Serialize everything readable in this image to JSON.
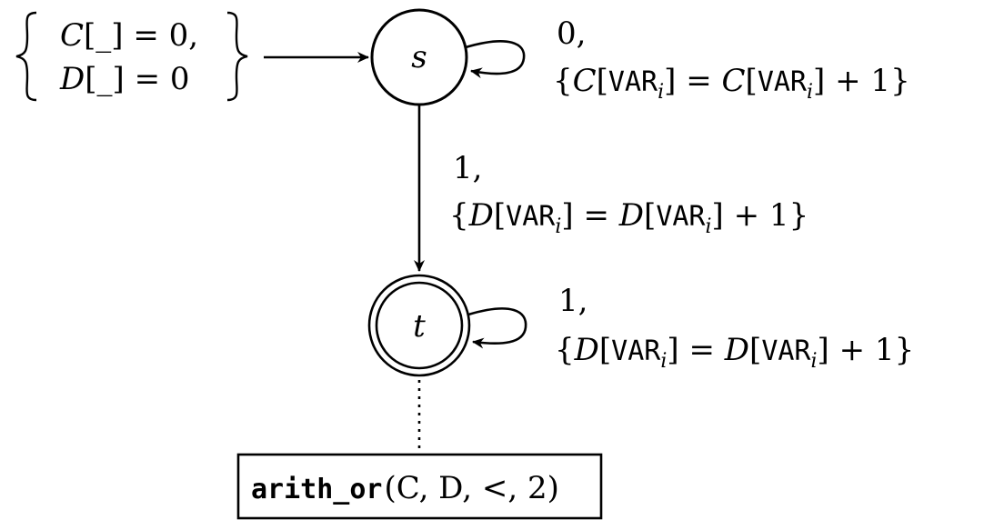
{
  "initial_conditions": {
    "line1": {
      "array": "C",
      "open": "[",
      "index": "_",
      "close": "]",
      "rest": " = 0,"
    },
    "line2": {
      "array": "D",
      "open": "[",
      "index": "_",
      "close": "]",
      "rest": " = 0"
    }
  },
  "states": {
    "s": {
      "label": "s"
    },
    "t": {
      "label": "t"
    }
  },
  "transitions": {
    "s_loop": {
      "letter": "0,",
      "brace_open": "{",
      "lhs_array": "C",
      "rhs_array": "C",
      "var": "VAR",
      "sub": "i",
      "eq": " = ",
      "plus": " + 1",
      "brace_close": "}"
    },
    "s_to_t": {
      "letter": "1,",
      "brace_open": "{",
      "lhs_array": "D",
      "rhs_array": "D",
      "var": "VAR",
      "sub": "i",
      "eq": " = ",
      "plus": " + 1",
      "brace_close": "}"
    },
    "t_loop": {
      "letter": "1,",
      "brace_open": "{",
      "lhs_array": "D",
      "rhs_array": "D",
      "var": "VAR",
      "sub": "i",
      "eq": " = ",
      "plus": " + 1",
      "brace_close": "}"
    }
  },
  "constraint": {
    "name": "arith_or",
    "args": "(C, D, <, 2)"
  }
}
